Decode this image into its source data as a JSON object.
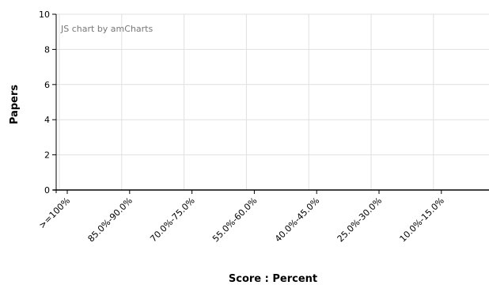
{
  "chart_data": {
    "type": "bar",
    "title": "",
    "xlabel": "Score : Percent",
    "ylabel": "Papers",
    "watermark": "JS chart by amCharts",
    "ylim": [
      0,
      10
    ],
    "yticks": [
      "0",
      "2",
      "4",
      "6",
      "8",
      "10"
    ],
    "categories": [
      ">=100%",
      "85.0%-90.0%",
      "70.0%-75.0%",
      "55.0%-60.0%",
      "40.0%-45.0%",
      "25.0%-30.0%",
      "10.0%-15.0%"
    ],
    "values": [
      0,
      0,
      0,
      0,
      0,
      0,
      0
    ],
    "grid": true,
    "colors": {
      "grid": "#e0e0e0",
      "axis": "#000000",
      "watermark": "#777777"
    }
  }
}
